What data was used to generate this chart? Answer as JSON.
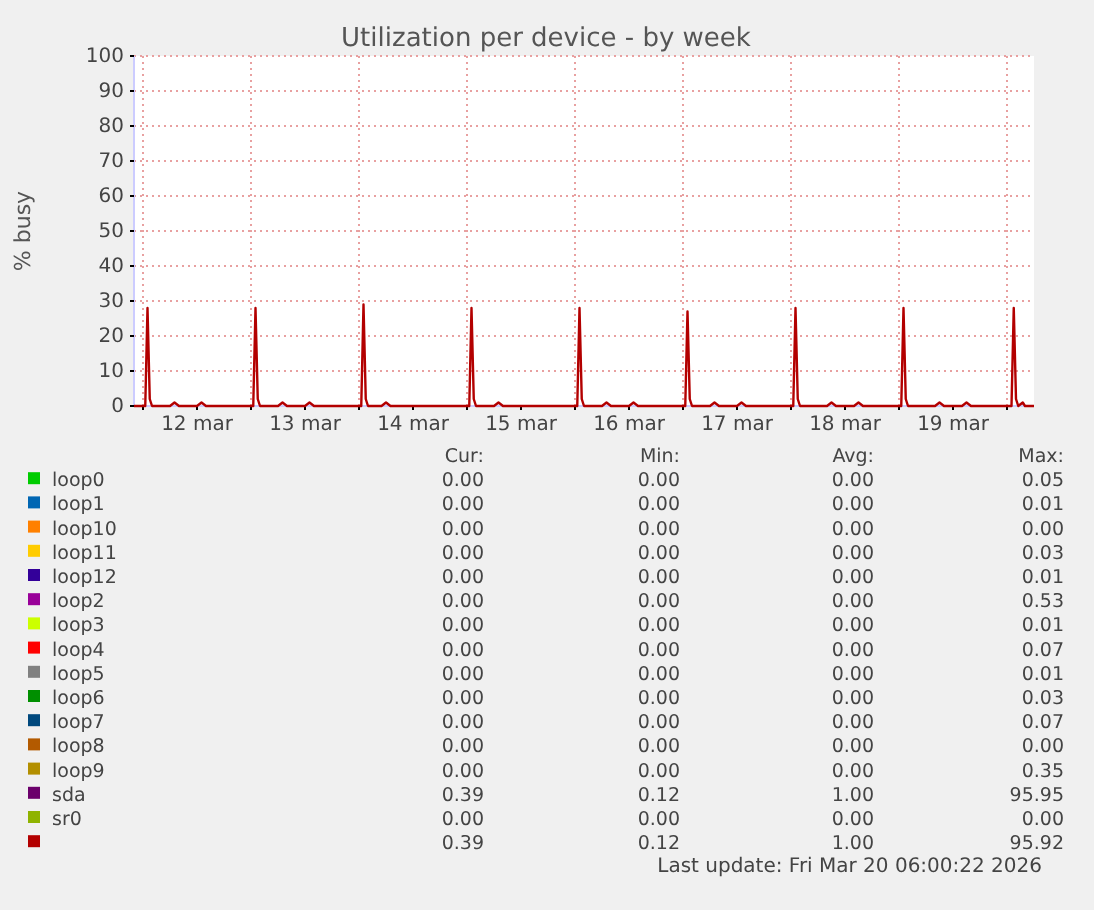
{
  "chart_data": {
    "type": "line",
    "title": "Utilization per device - by week",
    "ylabel": "% busy",
    "xlim": [
      "2026-03-11T22:00",
      "2026-03-20T06:00"
    ],
    "xticks": [
      {
        "value": "2026-03-12T00:00",
        "label": null
      },
      {
        "value": "2026-03-12T12:00",
        "label": "12 mar"
      },
      {
        "value": "2026-03-13T00:00",
        "label": null
      },
      {
        "value": "2026-03-13T12:00",
        "label": "13 mar"
      },
      {
        "value": "2026-03-14T00:00",
        "label": null
      },
      {
        "value": "2026-03-14T12:00",
        "label": "14 mar"
      },
      {
        "value": "2026-03-15T00:00",
        "label": null
      },
      {
        "value": "2026-03-15T12:00",
        "label": "15 mar"
      },
      {
        "value": "2026-03-16T00:00",
        "label": null
      },
      {
        "value": "2026-03-16T12:00",
        "label": "16 mar"
      },
      {
        "value": "2026-03-17T00:00",
        "label": null
      },
      {
        "value": "2026-03-17T12:00",
        "label": "17 mar"
      },
      {
        "value": "2026-03-18T00:00",
        "label": null
      },
      {
        "value": "2026-03-18T12:00",
        "label": "18 mar"
      },
      {
        "value": "2026-03-19T00:00",
        "label": null
      },
      {
        "value": "2026-03-19T12:00",
        "label": "19 mar"
      },
      {
        "value": "2026-03-20T00:00",
        "label": null
      }
    ],
    "ylim": [
      0,
      100
    ],
    "yticks": [
      0,
      10,
      20,
      30,
      40,
      50,
      60,
      70,
      80,
      90,
      100
    ],
    "grid": true,
    "legend": "bottom",
    "series": [
      {
        "name": "loop0",
        "color": "#00cc00"
      },
      {
        "name": "loop1",
        "color": "#0066b3"
      },
      {
        "name": "loop10",
        "color": "#ff8000"
      },
      {
        "name": "loop11",
        "color": "#ffcc00"
      },
      {
        "name": "loop12",
        "color": "#330099"
      },
      {
        "name": "loop2",
        "color": "#990099"
      },
      {
        "name": "loop3",
        "color": "#ccff00"
      },
      {
        "name": "loop4",
        "color": "#ff0000"
      },
      {
        "name": "loop5",
        "color": "#808080"
      },
      {
        "name": "loop6",
        "color": "#008f00"
      },
      {
        "name": "loop7",
        "color": "#00487d"
      },
      {
        "name": "loop8",
        "color": "#b35a00"
      },
      {
        "name": "loop9",
        "color": "#b38f00"
      },
      {
        "name": "sda",
        "color": "#6b006b"
      },
      {
        "name": "sr0",
        "color": "#8fb300"
      },
      {
        "color": "#b30000",
        "x": [
          "2026-03-11T22:00",
          "2026-03-12T00:30",
          "2026-03-12T01:00",
          "2026-03-12T01:30",
          "2026-03-12T02:00",
          "2026-03-12T06:00",
          "2026-03-12T07:00",
          "2026-03-12T08:00",
          "2026-03-12T12:00",
          "2026-03-12T13:00",
          "2026-03-12T14:00",
          "2026-03-13T00:30",
          "2026-03-13T01:00",
          "2026-03-13T01:30",
          "2026-03-13T02:00",
          "2026-03-13T06:00",
          "2026-03-13T07:00",
          "2026-03-13T08:00",
          "2026-03-13T12:00",
          "2026-03-13T13:00",
          "2026-03-13T14:00",
          "2026-03-14T00:30",
          "2026-03-14T01:00",
          "2026-03-14T01:30",
          "2026-03-14T02:00",
          "2026-03-14T05:00",
          "2026-03-14T06:00",
          "2026-03-14T07:00",
          "2026-03-15T00:30",
          "2026-03-15T01:00",
          "2026-03-15T01:30",
          "2026-03-15T02:00",
          "2026-03-15T06:00",
          "2026-03-15T07:00",
          "2026-03-15T08:00",
          "2026-03-16T00:30",
          "2026-03-16T01:00",
          "2026-03-16T01:30",
          "2026-03-16T02:00",
          "2026-03-16T06:00",
          "2026-03-16T07:00",
          "2026-03-16T08:00",
          "2026-03-16T12:00",
          "2026-03-16T13:00",
          "2026-03-16T14:00",
          "2026-03-17T00:30",
          "2026-03-17T01:00",
          "2026-03-17T01:30",
          "2026-03-17T02:00",
          "2026-03-17T06:00",
          "2026-03-17T07:00",
          "2026-03-17T08:00",
          "2026-03-17T12:00",
          "2026-03-17T13:00",
          "2026-03-17T14:00",
          "2026-03-18T00:30",
          "2026-03-18T01:00",
          "2026-03-18T01:30",
          "2026-03-18T02:00",
          "2026-03-18T08:00",
          "2026-03-18T09:00",
          "2026-03-18T10:00",
          "2026-03-18T14:00",
          "2026-03-18T15:00",
          "2026-03-18T16:00",
          "2026-03-19T00:30",
          "2026-03-19T01:00",
          "2026-03-19T01:30",
          "2026-03-19T02:00",
          "2026-03-19T08:00",
          "2026-03-19T09:00",
          "2026-03-19T10:00",
          "2026-03-19T14:00",
          "2026-03-19T15:00",
          "2026-03-19T16:00",
          "2026-03-20T01:00",
          "2026-03-20T01:30",
          "2026-03-20T02:00",
          "2026-03-20T02:30",
          "2026-03-20T03:30",
          "2026-03-20T04:00",
          "2026-03-20T06:00"
        ],
        "values": [
          0,
          0,
          28,
          2,
          0,
          0,
          1,
          0,
          0,
          1,
          0,
          0,
          28,
          2,
          0,
          0,
          1,
          0,
          0,
          1,
          0,
          0,
          29,
          2,
          0,
          0,
          1,
          0,
          0,
          28,
          2,
          0,
          0,
          1,
          0,
          0,
          28,
          2,
          0,
          0,
          1,
          0,
          0,
          1,
          0,
          0,
          27,
          2,
          0,
          0,
          1,
          0,
          0,
          1,
          0,
          0,
          28,
          2,
          0,
          0,
          1,
          0,
          0,
          1,
          0,
          0,
          28,
          2,
          0,
          0,
          1,
          0,
          0,
          1,
          0,
          0,
          28,
          2,
          0,
          1,
          0,
          0
        ]
      }
    ],
    "annotations": [
      "Cur:",
      "Min:",
      "Avg:",
      "Max:",
      "0.00",
      "0.00",
      "0.00",
      "0.05",
      "0.00",
      "0.00",
      "0.00",
      "0.01",
      "0.00",
      "0.00",
      "0.00",
      "0.00",
      "0.00",
      "0.00",
      "0.00",
      "0.03",
      "0.00",
      "0.00",
      "0.00",
      "0.01",
      "0.00",
      "0.00",
      "0.00",
      "0.53",
      "0.00",
      "0.00",
      "0.00",
      "0.01",
      "0.00",
      "0.00",
      "0.00",
      "0.07",
      "0.00",
      "0.00",
      "0.00",
      "0.01",
      "0.00",
      "0.00",
      "0.00",
      "0.03",
      "0.00",
      "0.00",
      "0.00",
      "0.07",
      "0.00",
      "0.00",
      "0.00",
      "0.00",
      "0.00",
      "0.00",
      "0.00",
      "0.35",
      "0.39",
      "0.12",
      "1.00",
      "95.95",
      "0.00",
      "0.00",
      "0.00",
      "0.00",
      "0.39",
      "0.12",
      "1.00",
      "95.92",
      "Last update: Fri Mar 20 06:00:22 2026"
    ]
  }
}
